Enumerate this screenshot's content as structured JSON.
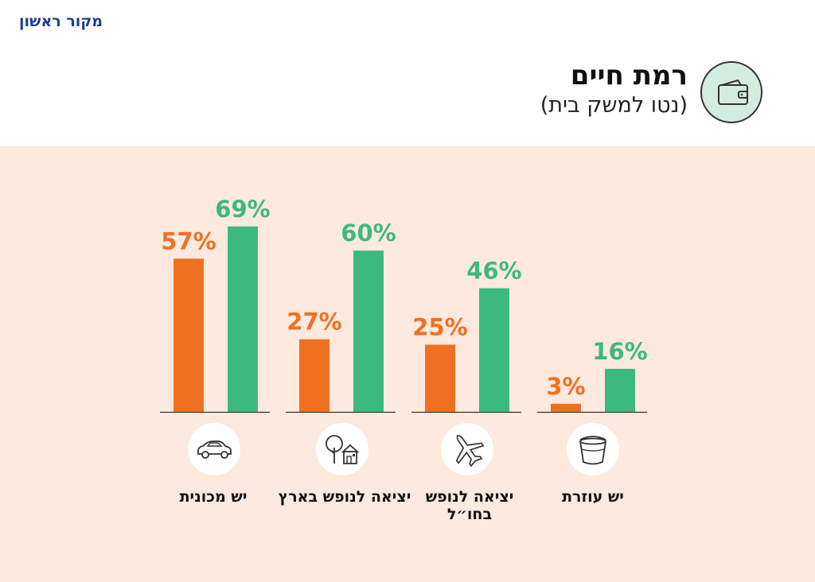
{
  "brand": "מקור ראשון",
  "title": "רמת חיים",
  "subtitle": "(נטו למשק בית)",
  "colors": {
    "orange": "#f07022",
    "green": "#3cba7c",
    "background": "#fde9dd",
    "icon_circle": "#d3ece0"
  },
  "chart_data": {
    "type": "bar",
    "title": "רמת חיים",
    "subtitle": "(נטו למשק בית)",
    "categories": [
      "יש מכונית",
      "יציאה לנופש בארץ",
      "יציאה לנופש בחו״ל",
      "יש עוזרת"
    ],
    "category_icons": [
      "car-icon",
      "house-tree-icon",
      "airplane-icon",
      "bucket-icon"
    ],
    "series": [
      {
        "color": "#f07022",
        "values": [
          57,
          27,
          25,
          3
        ],
        "labels": [
          "57%",
          "27%",
          "25%",
          "3%"
        ]
      },
      {
        "color": "#3cba7c",
        "values": [
          69,
          60,
          46,
          16
        ],
        "labels": [
          "69%",
          "60%",
          "46%",
          "16%"
        ]
      }
    ],
    "unit": "%",
    "ylim": [
      0,
      100
    ],
    "grid": false,
    "legend": "none"
  }
}
